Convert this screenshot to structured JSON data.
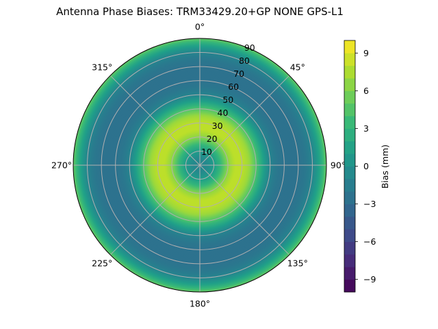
{
  "chart_data": {
    "type": "heatmap",
    "projection": "polar",
    "title": "Antenna Phase Biases: TRM33429.20+GP  NONE GPS-L1",
    "azimuth_ticks": [
      "0°",
      "45°",
      "90°",
      "135°",
      "180°",
      "225°",
      "270°",
      "315°"
    ],
    "radial_ticks": [
      "10",
      "20",
      "30",
      "40",
      "50",
      "60",
      "70",
      "80",
      "90"
    ],
    "radial_range": [
      0,
      90
    ],
    "colorbar": {
      "label": "Bias (mm)",
      "range": [
        -10,
        10
      ],
      "ticks": [
        "9",
        "6",
        "3",
        "0",
        "−3",
        "−6",
        "−9"
      ],
      "colormap": "viridis"
    },
    "grid": true,
    "bias_by_zenith_angle": {
      "zenith_deg": [
        0,
        5,
        10,
        15,
        20,
        25,
        30,
        35,
        40,
        45,
        50,
        55,
        60,
        65,
        70,
        75,
        80,
        85,
        90
      ],
      "bias_mm": [
        -1,
        -0.5,
        1,
        3.5,
        6.5,
        8,
        8,
        7,
        4.5,
        1.5,
        -1,
        -2,
        -2.5,
        -2.5,
        -2.5,
        -2,
        -1,
        1.5,
        5
      ]
    }
  }
}
